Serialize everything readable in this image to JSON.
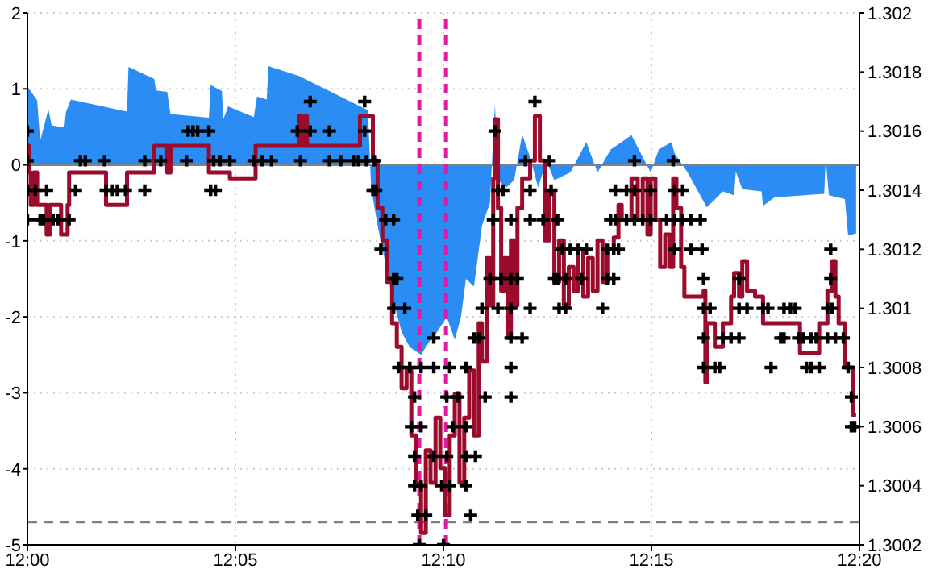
{
  "chart_data": {
    "type": "step",
    "xlim": [
      12,
      12.33333
    ],
    "xticks": [
      {
        "value": 12,
        "label": "12:00"
      },
      {
        "value": 12.08333,
        "label": "12:05"
      },
      {
        "value": 12.16667,
        "label": "12:10"
      },
      {
        "value": 12.25,
        "label": "12:15"
      },
      {
        "value": 12.33333,
        "label": "12:20"
      }
    ],
    "ylim": [
      -5,
      2
    ],
    "yticks": [
      -5,
      -4,
      -3,
      -2,
      -1,
      0,
      1,
      2
    ],
    "y2lim": [
      1.3002,
      1.302
    ],
    "y2ticks": [
      1.3002,
      1.3004,
      1.3006,
      1.3008,
      1.301,
      1.3012,
      1.3014,
      1.3016,
      1.3018,
      1.302
    ],
    "grid": true,
    "series": [
      {
        "type": "area",
        "color": "#2b8cf4",
        "x": [
          12,
          12.0039,
          12.0051,
          12.0084,
          12.0097,
          12.0148,
          12.0154,
          12.0174,
          12.0399,
          12.0405,
          12.0508,
          12.0515,
          12.056,
          12.0573,
          12.0727,
          12.0734,
          12.0779,
          12.0785,
          12.0804,
          12.0907,
          12.092,
          12.0959,
          12.0965,
          12.1088,
          12.1364,
          12.1377,
          12.1403,
          12.1435,
          12.1467,
          12.1499,
          12.1532,
          12.1577,
          12.1615,
          12.1641,
          12.168,
          12.1712,
          12.1737,
          12.1757,
          12.1789,
          12.1821,
          12.1853,
          12.1873,
          12.1886,
          12.1918,
          12.195,
          12.1982,
          12.2014,
          12.2046,
          12.2079,
          12.2111,
          12.2175,
          12.2239,
          12.2284,
          12.2336,
          12.242,
          12.2497,
          12.2529,
          12.258,
          12.2593,
          12.2645,
          12.2722,
          12.2786,
          12.2831,
          12.2838,
          12.2864,
          12.2941,
          12.2947,
          12.2992,
          12.3192,
          12.3198,
          12.3211,
          12.3275,
          12.3288,
          12.332
        ],
        "values": [
          1.03,
          0.85,
          0.32,
          0.73,
          0.52,
          0.49,
          0.69,
          0.86,
          0.7,
          1.29,
          1.13,
          0.98,
          0.96,
          0.67,
          0.62,
          1.05,
          0.97,
          0.6,
          0.77,
          0.63,
          0.9,
          0.86,
          1.3,
          1.17,
          0.72,
          -0.3,
          -0.8,
          -1.3,
          -1.8,
          -2.2,
          -2.4,
          -2.5,
          -2.3,
          -2.2,
          -2,
          -2.3,
          -2,
          -1.5,
          -1.6,
          -0.8,
          -0.5,
          0.8,
          -0.2,
          -0.3,
          -0.2,
          0.4,
          0.1,
          -0.3,
          0.05,
          -0.2,
          -0.1,
          0.3,
          -0.1,
          0.2,
          0.39,
          -0.1,
          0.2,
          0.3,
          0.15,
          -0.1,
          -0.56,
          -0.35,
          -0.4,
          -0.09,
          -0.32,
          -0.35,
          -0.54,
          -0.43,
          -0.38,
          0.08,
          -0.4,
          -0.45,
          -0.93,
          -0.9
        ]
      },
      {
        "axis": "y2",
        "color": "#9b0b2b",
        "x": [
          12,
          12.0006,
          12.0013,
          12.0026,
          12.0039,
          12.0077,
          12.009,
          12.0135,
          12.0161,
          12.0167,
          12.0315,
          12.0399,
          12.0508,
          12.056,
          12.0573,
          12.0727,
          12.0811,
          12.0914,
          12.1088,
          12.11,
          12.1113,
          12.112,
          12.1332,
          12.1384,
          12.1403,
          12.1422,
          12.1441,
          12.1461,
          12.148,
          12.1499,
          12.1519,
          12.1538,
          12.1557,
          12.1577,
          12.1596,
          12.1615,
          12.1635,
          12.1654,
          12.1673,
          12.1692,
          12.1712,
          12.1731,
          12.175,
          12.177,
          12.1789,
          12.1808,
          12.1821,
          12.184,
          12.1853,
          12.1866,
          12.1873,
          12.1885,
          12.1898,
          12.1911,
          12.1924,
          12.1937,
          12.195,
          12.1963,
          12.1982,
          12.2014,
          12.2033,
          12.2053,
          12.2072,
          12.2091,
          12.2111,
          12.213,
          12.2149,
          12.2169,
          12.2188,
          12.2207,
          12.2227,
          12.2246,
          12.2265,
          12.2284,
          12.2304,
          12.2323,
          12.2349,
          12.2368,
          12.2381,
          12.242,
          12.2445,
          12.2465,
          12.2484,
          12.2497,
          12.2516,
          12.2535,
          12.2555,
          12.2574,
          12.2587,
          12.26,
          12.2619,
          12.2632,
          12.2709,
          12.2716,
          12.2722,
          12.2754,
          12.2786,
          12.2819,
          12.2831,
          12.2851,
          12.2864,
          12.2883,
          12.2915,
          12.2947,
          12.3095,
          12.3172,
          12.3205,
          12.3224,
          12.3237,
          12.325,
          12.3275,
          12.3308,
          12.332
        ],
        "values": [
          1.30155,
          1.30146,
          1.30135,
          1.30146,
          1.30135,
          1.30125,
          1.30135,
          1.30125,
          1.30135,
          1.30146,
          1.30135,
          1.30146,
          1.30155,
          1.30146,
          1.30155,
          1.30146,
          1.30144,
          1.30155,
          1.30165,
          1.30155,
          1.30165,
          1.30155,
          1.30165,
          1.3015,
          1.30134,
          1.30123,
          1.30109,
          1.30095,
          1.30087,
          1.30073,
          1.30079,
          1.30057,
          1.30041,
          1.30024,
          1.30052,
          1.30041,
          1.30063,
          1.30046,
          1.3003,
          1.30057,
          1.30071,
          1.30041,
          1.30063,
          1.30079,
          1.30057,
          1.30095,
          1.30082,
          1.30117,
          1.30101,
          1.30144,
          1.30164,
          1.30134,
          1.30106,
          1.30117,
          1.3009,
          1.30123,
          1.30101,
          1.30134,
          1.30144,
          1.3015,
          1.30165,
          1.3015,
          1.30123,
          1.30139,
          1.30109,
          1.30123,
          1.30101,
          1.30114,
          1.30106,
          1.3012,
          1.30104,
          1.30117,
          1.30106,
          1.30123,
          1.30109,
          1.3012,
          1.30124,
          1.30135,
          1.3013,
          1.30144,
          1.3013,
          1.30144,
          1.30125,
          1.30144,
          1.3013,
          1.30114,
          1.30125,
          1.30114,
          1.30144,
          1.30134,
          1.30114,
          1.30104,
          1.30106,
          1.30075,
          1.30095,
          1.30087,
          1.30095,
          1.30104,
          1.30112,
          1.30104,
          1.30116,
          1.30106,
          1.30104,
          1.30095,
          1.30085,
          1.30095,
          1.30106,
          1.30116,
          1.30104,
          1.30095,
          1.3008,
          1.30064,
          1.30064
        ]
      },
      {
        "type": "scatter",
        "axis": "y2",
        "color": "#000000",
        "marker": "cross",
        "x": [
          12,
          12,
          12,
          12,
          12.0032,
          12.0051,
          12.0064,
          12.0077,
          12.0103,
          12.0122,
          12.0167,
          12.0193,
          12.0212,
          12.0232,
          12.0309,
          12.0315,
          12.0341,
          12.036,
          12.0393,
          12.047,
          12.047,
          12.0534,
          12.0637,
          12.0644,
          12.0663,
          12.0682,
          12.0727,
          12.0734,
          12.0746,
          12.0753,
          12.0772,
          12.0811,
          12.0907,
          12.094,
          12.0978,
          12.1081,
          12.1094,
          12.1133,
          12.1133,
          12.121,
          12.121,
          12.1255,
          12.1306,
          12.1326,
          12.1351,
          12.1351,
          12.1358,
          12.1384,
          12.139,
          12.1396,
          12.1416,
          12.1435,
          12.1467,
          12.1467,
          12.1467,
          12.148,
          12.1487,
          12.1512,
          12.1532,
          12.1538,
          12.1551,
          12.1551,
          12.1551,
          12.1564,
          12.157,
          12.1577,
          12.1577,
          12.1577,
          12.1596,
          12.1628,
          12.1628,
          12.1628,
          12.166,
          12.1667,
          12.168,
          12.168,
          12.1692,
          12.1692,
          12.1705,
          12.1725,
          12.1757,
          12.1757,
          12.1757,
          12.1757,
          12.1776,
          12.1789,
          12.1795,
          12.1808,
          12.1821,
          12.1834,
          12.1853,
          12.1866,
          12.1873,
          12.1885,
          12.1885,
          12.1898,
          12.1905,
          12.1937,
          12.1937,
          12.1937,
          12.1937,
          12.1937,
          12.1937,
          12.1963,
          12.1982,
          12.1995,
          12.2014,
          12.2014,
          12.2014,
          12.2033,
          12.2066,
          12.2091,
          12.2098,
          12.2111,
          12.2124,
          12.2124,
          12.213,
          12.2143,
          12.2156,
          12.2156,
          12.2175,
          12.2207,
          12.222,
          12.2239,
          12.2304,
          12.2323,
          12.2323,
          12.2336,
          12.2349,
          12.2349,
          12.2355,
          12.2355,
          12.2368,
          12.24,
          12.24,
          12.2432,
          12.2432,
          12.2432,
          12.2465,
          12.2497,
          12.2497,
          12.2561,
          12.2587,
          12.2593,
          12.2593,
          12.2593,
          12.2625,
          12.2625,
          12.2658,
          12.2658,
          12.2696,
          12.2703,
          12.2709,
          12.2709,
          12.2709,
          12.2709,
          12.2735,
          12.2754,
          12.2773,
          12.2786,
          12.2819,
          12.2851,
          12.2851,
          12.2851,
          12.2883,
          12.2947,
          12.2967,
          12.2979,
          12.3018,
          12.3031,
          12.3031,
          12.3057,
          12.3076,
          12.3089,
          12.3108,
          12.3121,
          12.314,
          12.314,
          12.316,
          12.3172,
          12.3205,
          12.3205,
          12.3218,
          12.3218,
          12.3224,
          12.3237,
          12.3269,
          12.3288,
          12.3301,
          12.3301,
          12.3314
        ],
        "values": [
          1.3016,
          1.3015,
          1.3014,
          1.3013,
          1.3014,
          1.3013,
          1.3013,
          1.3014,
          1.3013,
          1.3013,
          1.3013,
          1.3014,
          1.3015,
          1.3015,
          1.3015,
          1.3014,
          1.3014,
          1.3014,
          1.3014,
          1.3015,
          1.3014,
          1.3015,
          1.3015,
          1.3016,
          1.3016,
          1.3016,
          1.3016,
          1.3014,
          1.3015,
          1.3014,
          1.3015,
          1.3015,
          1.3015,
          1.3015,
          1.3015,
          1.3016,
          1.3015,
          1.3017,
          1.3016,
          1.3016,
          1.3015,
          1.3015,
          1.3015,
          1.3015,
          1.3017,
          1.3016,
          1.3015,
          1.3014,
          1.3015,
          1.3014,
          1.3012,
          1.3013,
          1.3013,
          1.3011,
          1.301,
          1.3011,
          1.3008,
          1.301,
          1.3008,
          1.3006,
          1.3007,
          1.3005,
          1.3004,
          1.3003,
          1.3002,
          1.3008,
          1.3006,
          1.3004,
          1.3003,
          1.3009,
          1.3008,
          1.3005,
          1.3004,
          1.3002,
          1.3007,
          1.3005,
          1.3008,
          1.3004,
          1.3006,
          1.3007,
          1.3008,
          1.3006,
          1.3005,
          1.3004,
          1.3003,
          1.3009,
          1.3005,
          1.3009,
          1.301,
          1.3007,
          1.3011,
          1.3013,
          1.3016,
          1.3014,
          1.301,
          1.3011,
          1.3014,
          1.3013,
          1.3011,
          1.301,
          1.3009,
          1.3008,
          1.3007,
          1.3011,
          1.3009,
          1.3015,
          1.3014,
          1.3013,
          1.301,
          1.3017,
          1.3013,
          1.3015,
          1.3014,
          1.3011,
          1.3013,
          1.3011,
          1.301,
          1.3012,
          1.3011,
          1.301,
          1.3012,
          1.3012,
          1.3011,
          1.3012,
          1.301,
          1.3012,
          1.3011,
          1.3013,
          1.3012,
          1.3011,
          1.3014,
          1.3013,
          1.3012,
          1.3014,
          1.3013,
          1.3015,
          1.3014,
          1.3013,
          1.3013,
          1.3014,
          1.3013,
          1.3013,
          1.3015,
          1.3014,
          1.3013,
          1.3012,
          1.3014,
          1.3013,
          1.3013,
          1.3012,
          1.3013,
          1.3012,
          1.3011,
          1.301,
          1.3009,
          1.3008,
          1.301,
          1.3008,
          1.3008,
          1.3009,
          1.3009,
          1.3011,
          1.301,
          1.3009,
          1.301,
          1.301,
          1.301,
          1.3008,
          1.3009,
          1.301,
          1.3009,
          1.301,
          1.301,
          1.3009,
          1.3009,
          1.3008,
          1.3009,
          1.3008,
          1.3009,
          1.3008,
          1.301,
          1.3009,
          1.3012,
          1.3011,
          1.301,
          1.3009,
          1.3009,
          1.3008,
          1.3007,
          1.3006,
          1.3006
        ]
      }
    ],
    "ref_lines": [
      {
        "axis": "y",
        "value": 0,
        "color": "#808080",
        "line_style": "solid"
      },
      {
        "axis": "y",
        "value": -4.7,
        "color": "#808080",
        "line_style": "dashed"
      },
      {
        "axis": "x",
        "value": 12.157,
        "color": "#e01aa6",
        "line_style": "dashed"
      },
      {
        "axis": "x",
        "value": 12.1677,
        "color": "#e01aa6",
        "line_style": "dashed"
      }
    ]
  }
}
